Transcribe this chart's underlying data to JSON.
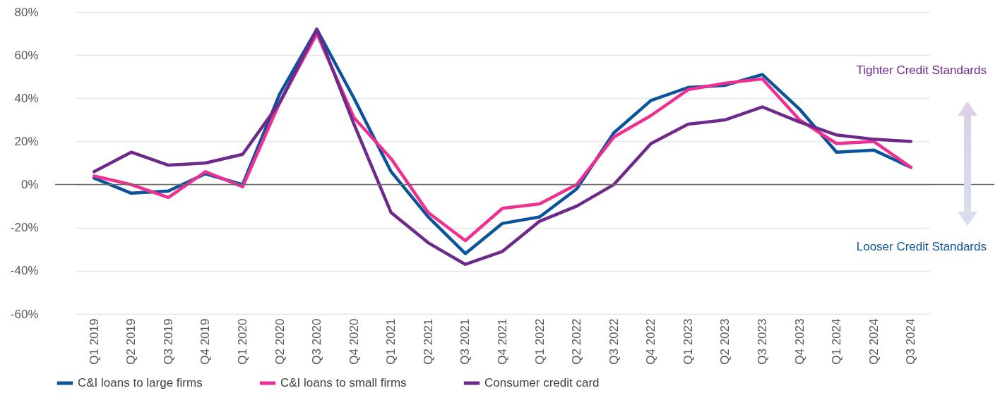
{
  "chart_data": {
    "type": "line",
    "categories": [
      "Q1 2019",
      "Q2 2019",
      "Q3 2019",
      "Q4 2019",
      "Q1 2020",
      "Q2 2020",
      "Q3 2020",
      "Q4 2020",
      "Q1 2021",
      "Q2 2021",
      "Q3 2021",
      "Q4 2021",
      "Q1 2022",
      "Q2 2022",
      "Q3 2022",
      "Q4 2022",
      "Q1 2023",
      "Q2 2023",
      "Q3 2023",
      "Q4 2023",
      "Q1 2024",
      "Q2 2024",
      "Q3 2024"
    ],
    "series": [
      {
        "name": "C&I loans to large firms",
        "color": "#0b539b",
        "values": [
          3,
          -4,
          -3,
          5,
          0,
          42,
          72,
          40,
          6,
          -15,
          -32,
          -18,
          -15,
          -2,
          24,
          39,
          45,
          46,
          51,
          35,
          15,
          16,
          8
        ]
      },
      {
        "name": "C&I loans to small firms",
        "color": "#ef2f91",
        "values": [
          4,
          0,
          -6,
          6,
          -1,
          38,
          70,
          31,
          12,
          -13,
          -26,
          -11,
          -9,
          0,
          22,
          32,
          44,
          47,
          49,
          30,
          19,
          20,
          8
        ]
      },
      {
        "name": "Consumer credit card",
        "color": "#6e2a8a",
        "values": [
          6,
          15,
          9,
          10,
          14,
          38,
          72,
          28,
          -13,
          -27,
          -37,
          -31,
          -17,
          -10,
          0,
          19,
          28,
          30,
          36,
          29,
          23,
          21,
          20
        ]
      }
    ],
    "ylim": [
      -60,
      80
    ],
    "yticks": [
      {
        "value": -60,
        "label": "-60%"
      },
      {
        "value": -40,
        "label": "-40%"
      },
      {
        "value": -20,
        "label": "-20%"
      },
      {
        "value": 0,
        "label": "0%"
      },
      {
        "value": 20,
        "label": "20%"
      },
      {
        "value": 40,
        "label": "40%"
      },
      {
        "value": 60,
        "label": "60%"
      },
      {
        "value": 80,
        "label": "80%"
      }
    ],
    "grid": "y",
    "legend": "bottom",
    "ref_lines": [
      {
        "axis": "y",
        "value": 0,
        "color": "#6b6b6b"
      }
    ],
    "annotations": [
      "Tighter Credit Standards",
      "Looser Credit Standards"
    ]
  }
}
